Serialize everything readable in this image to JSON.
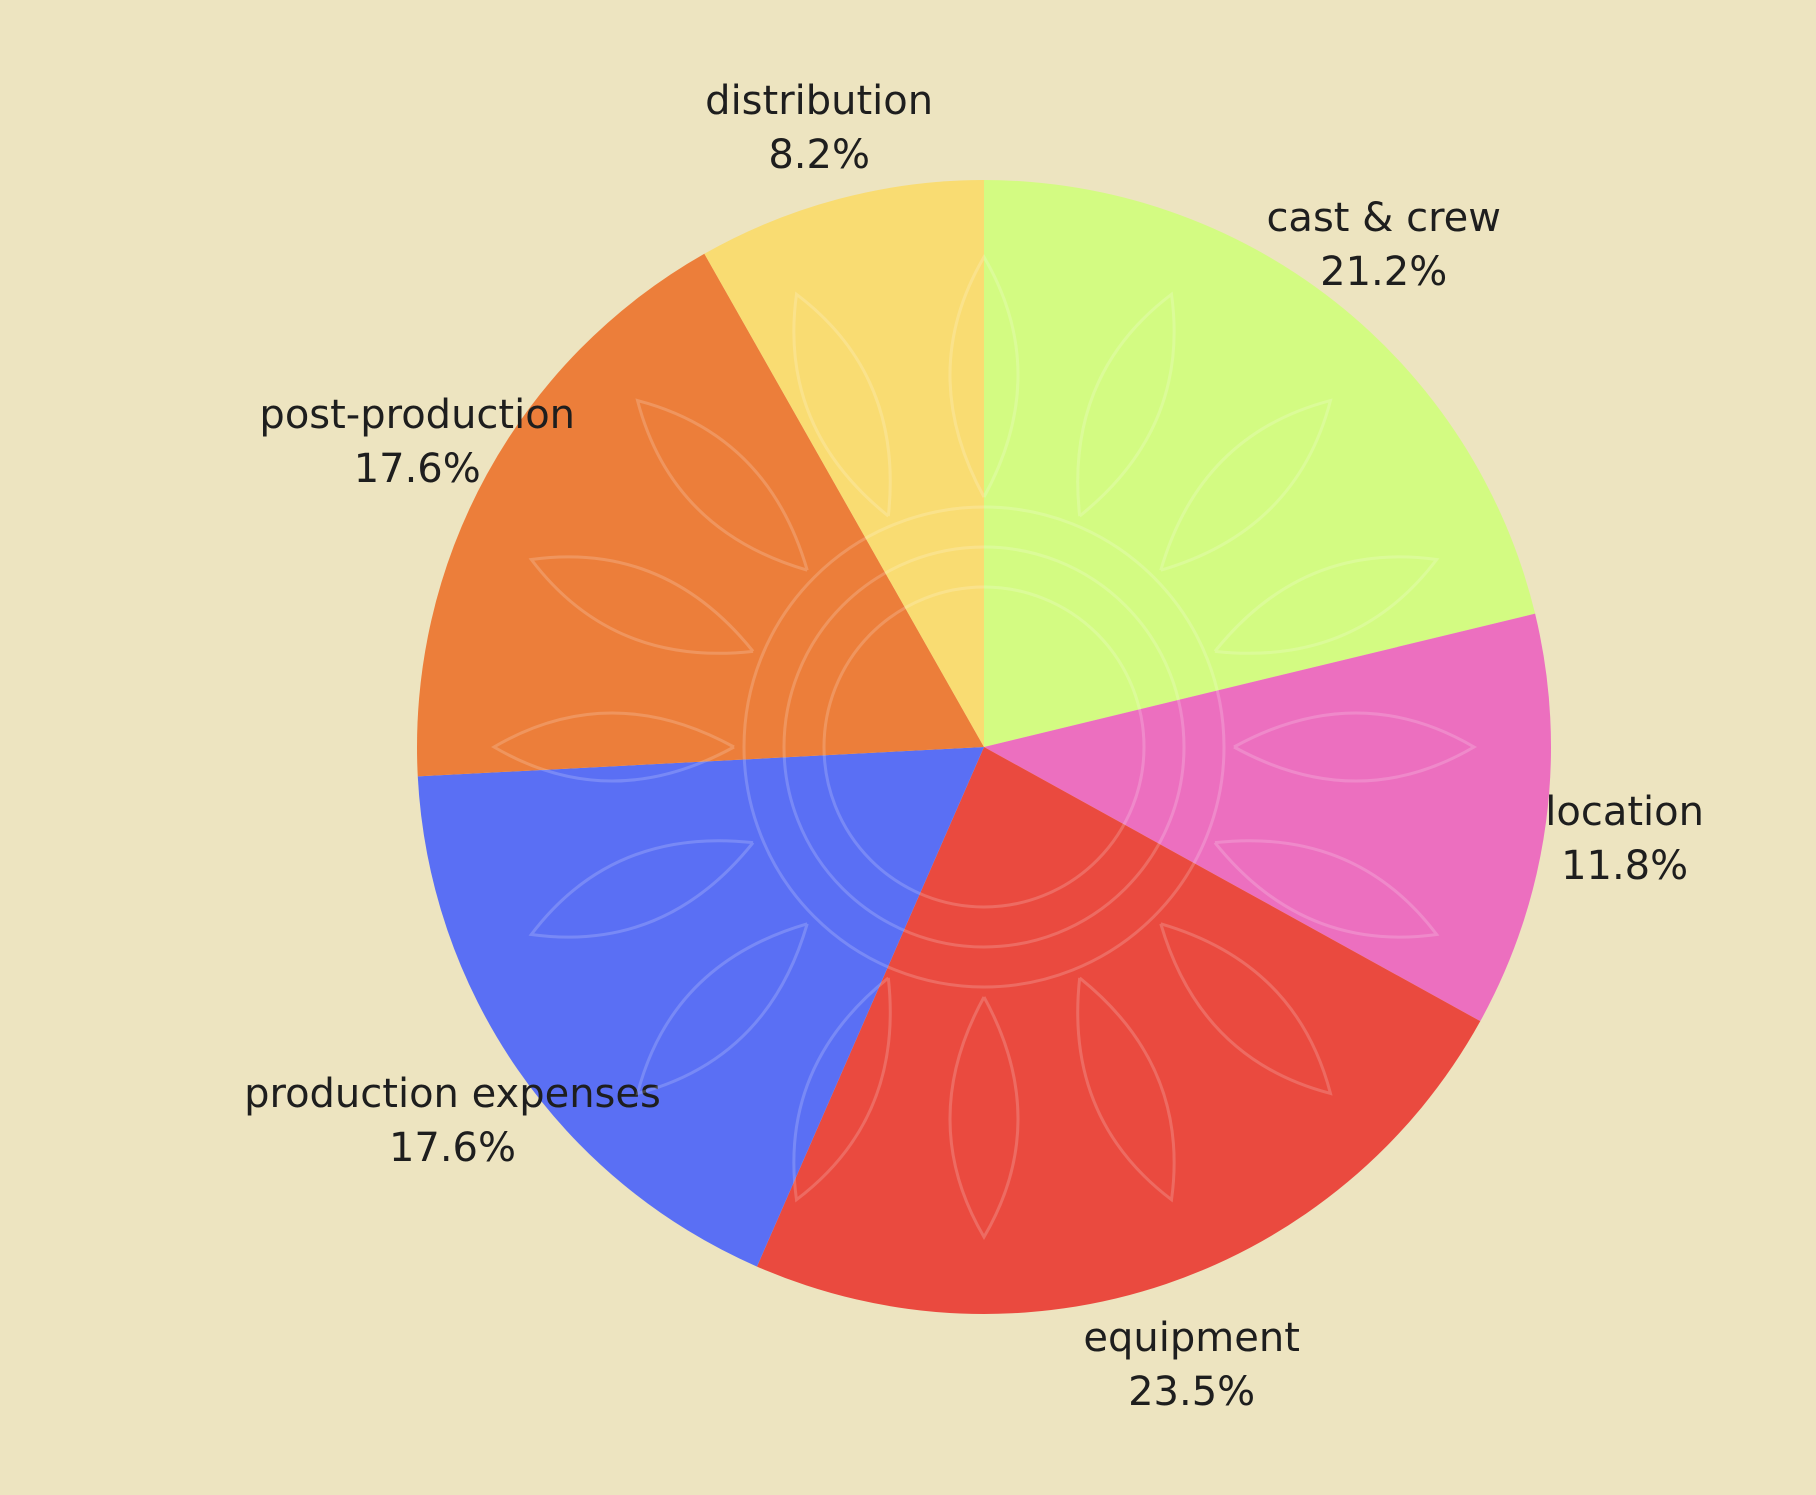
{
  "chart_data": {
    "type": "pie",
    "title": "",
    "start_angle": "top",
    "direction": "clockwise",
    "slices": [
      {
        "label": "cast & crew",
        "value": 21.2,
        "pct_label": "21.2%",
        "color": "#d3fb82"
      },
      {
        "label": "location",
        "value": 11.8,
        "pct_label": "11.8%",
        "color": "#ec6fbf"
      },
      {
        "label": "equipment",
        "value": 23.5,
        "pct_label": "23.5%",
        "color": "#ea4a3f"
      },
      {
        "label": "production expenses",
        "value": 17.6,
        "pct_label": "17.6%",
        "color": "#5a6ff4"
      },
      {
        "label": "post-production",
        "value": 17.6,
        "pct_label": "17.6%",
        "color": "#ec7e3a"
      },
      {
        "label": "distribution",
        "value": 8.2,
        "pct_label": "8.2%",
        "color": "#f9dc72"
      }
    ],
    "background": "#ede4c0"
  }
}
